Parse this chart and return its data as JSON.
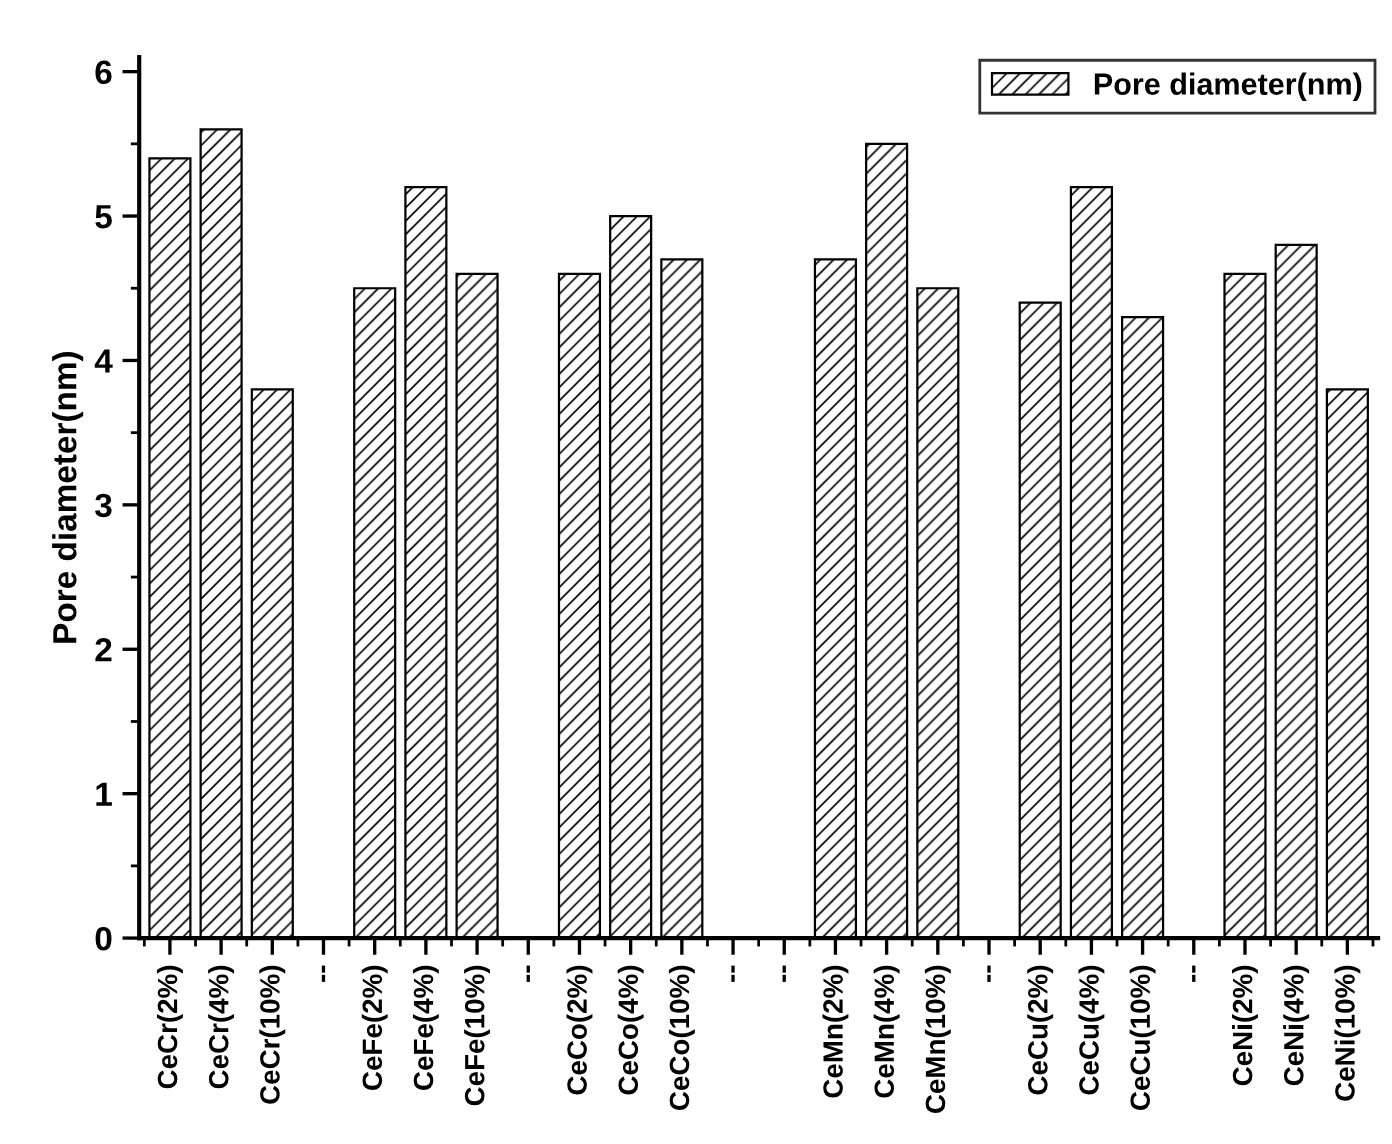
{
  "chart_data": {
    "type": "bar",
    "ylabel": "Pore diameter(nm)",
    "categories": [
      "CeCr(2%)",
      "CeCr(4%)",
      "CeCr(10%)",
      "--",
      "CeFe(2%)",
      "CeFe(4%)",
      "CeFe(10%)",
      "--",
      "CeCo(2%)",
      "CeCo(4%)",
      "CeCo(10%)",
      "--",
      "--",
      "CeMn(2%)",
      "CeMn(4%)",
      "CeMn(10%)",
      "--",
      "CeCu(2%)",
      "CeCu(4%)",
      "CeCu(10%)",
      "--",
      "CeNi(2%)",
      "CeNi(4%)",
      "CeNi(10%)"
    ],
    "series": [
      {
        "name": "Pore diameter(nm)",
        "color": "#000000",
        "values": [
          5.4,
          5.6,
          3.8,
          null,
          4.5,
          5.2,
          4.6,
          null,
          4.6,
          5.0,
          4.7,
          null,
          null,
          4.7,
          5.5,
          4.5,
          null,
          4.4,
          5.2,
          4.3,
          null,
          4.6,
          4.8,
          3.8
        ]
      }
    ],
    "ylim": [
      0,
      6.1
    ],
    "yticks": [
      0,
      1,
      2,
      3,
      4,
      5,
      6
    ],
    "legend": "top right",
    "grid": false
  }
}
